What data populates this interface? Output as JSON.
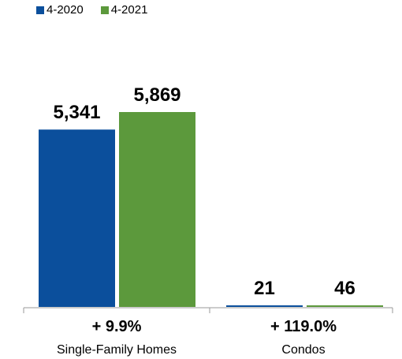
{
  "legend": {
    "items": [
      {
        "label": "4-2020",
        "color": "#0b4f9c"
      },
      {
        "label": "4-2021",
        "color": "#5c993c"
      }
    ]
  },
  "chart_data": {
    "type": "bar",
    "categories": [
      "Single-Family Homes",
      "Condos"
    ],
    "series": [
      {
        "name": "4-2020",
        "values": [
          5341,
          21
        ],
        "labels": [
          "5,341",
          "21"
        ],
        "color": "#0b4f9c"
      },
      {
        "name": "4-2021",
        "values": [
          5869,
          46
        ],
        "labels": [
          "5,869",
          "46"
        ],
        "color": "#5c993c"
      }
    ],
    "change_labels": [
      "+ 9.9%",
      "+ 119.0%"
    ],
    "ylim": [
      0,
      5869
    ],
    "grid": false,
    "legend_position": "top-left"
  }
}
